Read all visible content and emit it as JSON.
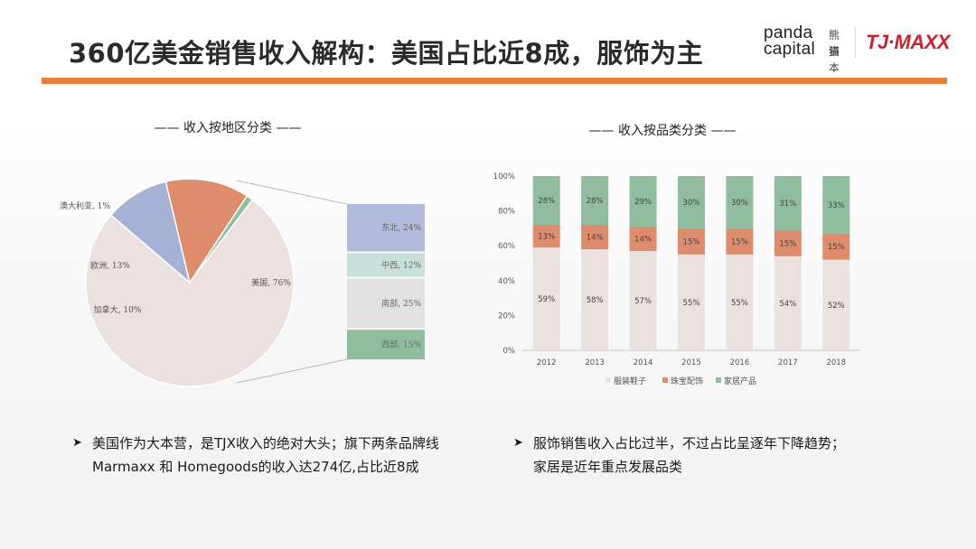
{
  "header": {
    "title": "360亿美金销售收入解构：美国占比近8成，服饰为主",
    "brand_panda_en1": "panda",
    "brand_panda_en2": "capital",
    "brand_panda_zh1": "熊猫",
    "brand_panda_zh2": "资本",
    "brand_tjx": "TJ·MAXX"
  },
  "colors": {
    "accent": "#e8803a",
    "pie_us": "#ebe1df",
    "pie_europe": "#de8c6c",
    "pie_canada": "#a6b1d6",
    "pie_australia": "#8fbd9d",
    "northeast": "#b2bbd9",
    "midwest": "#c7e0d9",
    "south": "#e1e1e1",
    "west": "#8fbd9d",
    "apparel": "#ebe1df",
    "jewelry": "#de8c6c",
    "home": "#8fbd9d"
  },
  "chart_data": [
    {
      "type": "pie",
      "title": "—— 收入按地区分类 ——",
      "slices": [
        {
          "label": "美国",
          "value": 76,
          "display": "美国, 76%"
        },
        {
          "label": "加拿大",
          "value": 10,
          "display": "加拿大, 10%"
        },
        {
          "label": "欧洲",
          "value": 13,
          "display": "欧洲, 13%"
        },
        {
          "label": "澳大利亚",
          "value": 1,
          "display": "澳大利亚, 1%"
        }
      ],
      "breakdown_of": "美国",
      "breakdown": [
        {
          "label": "东北",
          "value": 24,
          "display": "东北, 24%"
        },
        {
          "label": "中西",
          "value": 12,
          "display": "中西, 12%"
        },
        {
          "label": "南部",
          "value": 25,
          "display": "南部, 25%"
        },
        {
          "label": "西部",
          "value": 15,
          "display": "西部, 15%"
        }
      ]
    },
    {
      "type": "bar",
      "stacked": true,
      "title": "—— 收入按品类分类 ——",
      "categories": [
        "2012",
        "2013",
        "2014",
        "2015",
        "2016",
        "2017",
        "2018"
      ],
      "series": [
        {
          "name": "服装鞋子",
          "values": [
            59,
            58,
            57,
            55,
            55,
            54,
            52
          ],
          "labels": [
            "59%",
            "58%",
            "57%",
            "55%",
            "55%",
            "54%",
            "52%"
          ]
        },
        {
          "name": "珠宝配饰",
          "values": [
            13,
            14,
            14,
            15,
            15,
            15,
            15
          ],
          "labels": [
            "13%",
            "14%",
            "14%",
            "15%",
            "15%",
            "15%",
            "15%"
          ]
        },
        {
          "name": "家居产品",
          "values": [
            28,
            28,
            29,
            30,
            30,
            31,
            33
          ],
          "labels": [
            "28%",
            "28%",
            "29%",
            "30%",
            "30%",
            "31%",
            "33%"
          ]
        }
      ],
      "ylim": [
        0,
        100
      ],
      "yticks": [
        "0%",
        "20%",
        "40%",
        "60%",
        "80%",
        "100%"
      ],
      "legend": "bottom"
    }
  ],
  "bullets": {
    "left_line1": "美国作为大本营，是TJX收入的绝对大头；旗下两条品牌线",
    "left_line2": "Marmaxx 和 Homegoods的收入达274亿,占比近8成",
    "right_line1": "服饰销售收入占比过半，不过占比呈逐年下降趋势；",
    "right_line2": "家居是近年重点发展品类"
  }
}
